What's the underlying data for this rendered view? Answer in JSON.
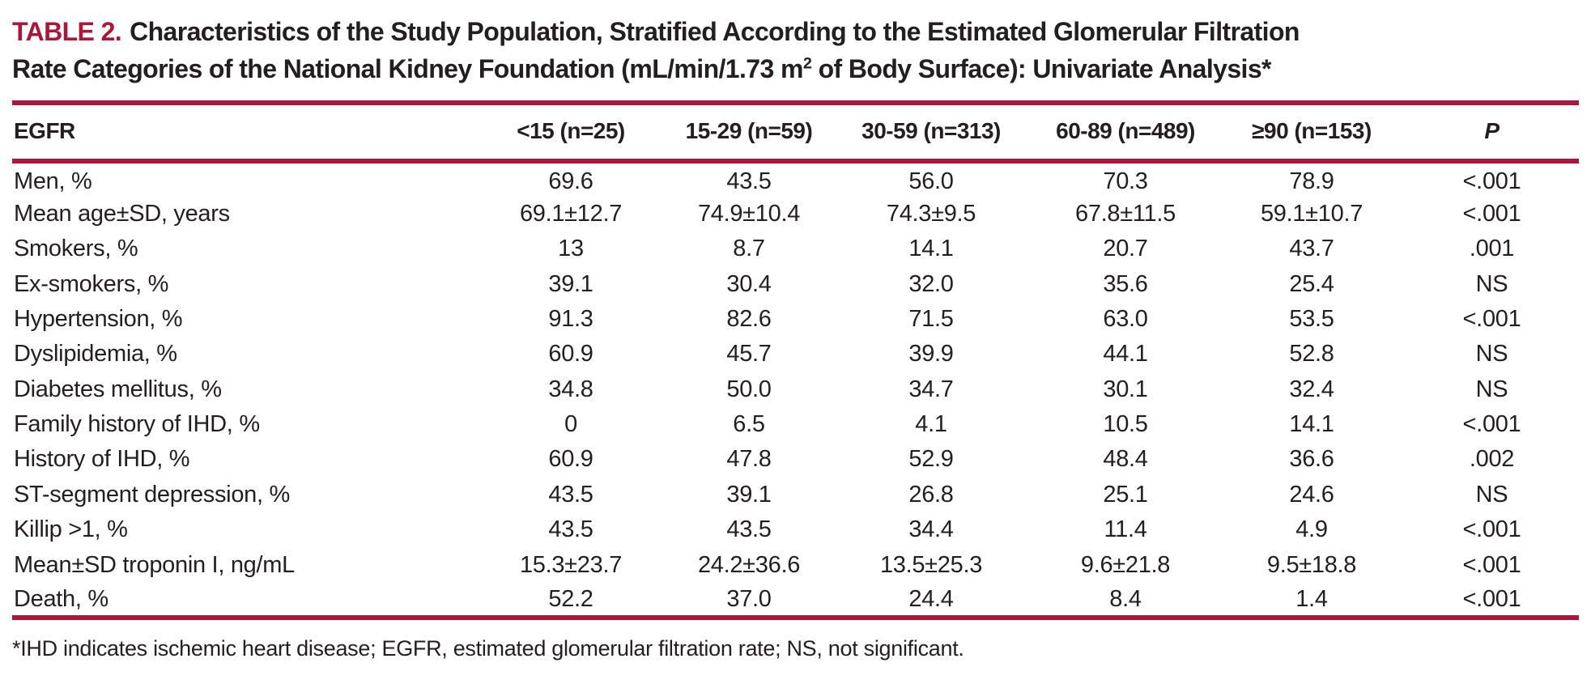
{
  "colors": {
    "accent": "#a9183c",
    "text": "#231f20"
  },
  "title": {
    "label": "TABLE 2.",
    "line1": "Characteristics of the Study Population, Stratified According to the Estimated Glomerular Filtration",
    "line2_pre": "Rate Categories of the National Kidney Foundation (mL/min/1.73 m",
    "sup": "2",
    "line2_post": " of Body Surface): Univariate Analysis*"
  },
  "table": {
    "columns": [
      "EGFR",
      "<15 (n=25)",
      "15-29 (n=59)",
      "30-59 (n=313)",
      "60-89 (n=489)",
      "≥90 (n=153)",
      "P"
    ],
    "rows": [
      {
        "label": "Men, %",
        "values": [
          "69.6",
          "43.5",
          "56.0",
          "70.3",
          "78.9",
          "<.001"
        ]
      },
      {
        "label": "Mean age±SD, years",
        "values": [
          "69.1±12.7",
          "74.9±10.4",
          "74.3±9.5",
          "67.8±11.5",
          "59.1±10.7",
          "<.001"
        ]
      },
      {
        "label": "Smokers, %",
        "values": [
          "13",
          "8.7",
          "14.1",
          "20.7",
          "43.7",
          ".001"
        ]
      },
      {
        "label": "Ex-smokers, %",
        "values": [
          "39.1",
          "30.4",
          "32.0",
          "35.6",
          "25.4",
          "NS"
        ]
      },
      {
        "label": "Hypertension, %",
        "values": [
          "91.3",
          "82.6",
          "71.5",
          "63.0",
          "53.5",
          "<.001"
        ]
      },
      {
        "label": "Dyslipidemia, %",
        "values": [
          "60.9",
          "45.7",
          "39.9",
          "44.1",
          "52.8",
          "NS"
        ]
      },
      {
        "label": "Diabetes mellitus, %",
        "values": [
          "34.8",
          "50.0",
          "34.7",
          "30.1",
          "32.4",
          "NS"
        ]
      },
      {
        "label": "Family history of IHD, %",
        "values": [
          "0",
          "6.5",
          "4.1",
          "10.5",
          "14.1",
          "<.001"
        ]
      },
      {
        "label": "History of IHD, %",
        "values": [
          "60.9",
          "47.8",
          "52.9",
          "48.4",
          "36.6",
          ".002"
        ]
      },
      {
        "label": "ST-segment depression, %",
        "values": [
          "43.5",
          "39.1",
          "26.8",
          "25.1",
          "24.6",
          "NS"
        ]
      },
      {
        "label": "Killip >1, %",
        "values": [
          "43.5",
          "43.5",
          "34.4",
          "11.4",
          "4.9",
          "<.001"
        ]
      },
      {
        "label": "Mean±SD troponin I, ng/mL",
        "values": [
          "15.3±23.7",
          "24.2±36.6",
          "13.5±25.3",
          "9.6±21.8",
          "9.5±18.8",
          "<.001"
        ]
      },
      {
        "label": "Death, %",
        "values": [
          "52.2",
          "37.0",
          "24.4",
          "8.4",
          "1.4",
          "<.001"
        ]
      }
    ]
  },
  "footnote": "*IHD indicates ischemic heart disease; EGFR, estimated glomerular filtration rate; NS, not significant."
}
